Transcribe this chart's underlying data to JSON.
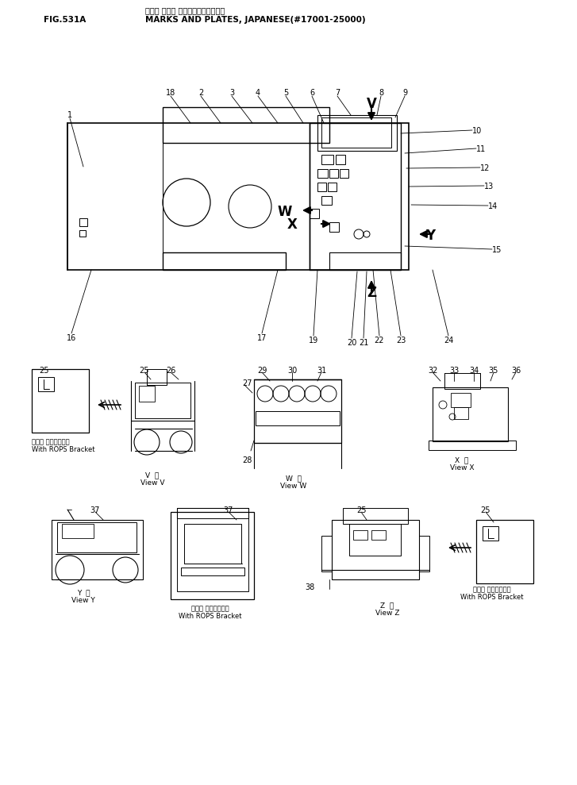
{
  "fig_label": "FIG.531A",
  "title_jp": "マーク オヨビス プレート（ニホンゴ）",
  "title_en": "MARKS AND PLATES, JAPANESE(#17001-25000)",
  "bg_color": "#ffffff",
  "lc": "#000000",
  "fig_width": 7.27,
  "fig_height": 9.89,
  "dpi": 100
}
